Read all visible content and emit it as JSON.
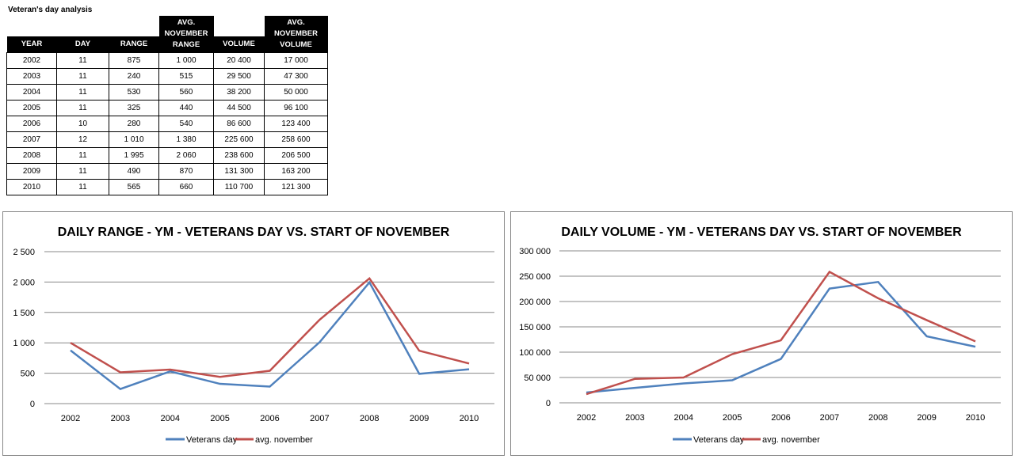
{
  "title": "Veteran's day analysis",
  "table": {
    "headers": [
      "YEAR",
      "DAY",
      "RANGE",
      "AVG. NOVEMBER RANGE",
      "VOLUME",
      "AVG. NOVEMBER VOLUME"
    ],
    "rows": [
      [
        "2002",
        "11",
        "875",
        "1 000",
        "20 400",
        "17 000"
      ],
      [
        "2003",
        "11",
        "240",
        "515",
        "29 500",
        "47 300"
      ],
      [
        "2004",
        "11",
        "530",
        "560",
        "38 200",
        "50 000"
      ],
      [
        "2005",
        "11",
        "325",
        "440",
        "44 500",
        "96 100"
      ],
      [
        "2006",
        "10",
        "280",
        "540",
        "86 600",
        "123 400"
      ],
      [
        "2007",
        "12",
        "1 010",
        "1 380",
        "225 600",
        "258 600"
      ],
      [
        "2008",
        "11",
        "1 995",
        "2 060",
        "238 600",
        "206 500"
      ],
      [
        "2009",
        "11",
        "490",
        "870",
        "131 300",
        "163 200"
      ],
      [
        "2010",
        "11",
        "565",
        "660",
        "110 700",
        "121 300"
      ]
    ]
  },
  "colors": {
    "veterans": "#4F81BD",
    "november": "#C0504D"
  },
  "chart_data": [
    {
      "type": "line",
      "title": "DAILY RANGE - YM - VETERANS DAY VS. START OF NOVEMBER",
      "categories": [
        "2002",
        "2003",
        "2004",
        "2005",
        "2006",
        "2007",
        "2008",
        "2009",
        "2010"
      ],
      "ylim": [
        0,
        2500
      ],
      "yticks": [
        0,
        500,
        1000,
        1500,
        2000,
        2500
      ],
      "ytick_labels": [
        "0",
        "500",
        "1 000",
        "1 500",
        "2 000",
        "2 500"
      ],
      "series": [
        {
          "name": "Veterans day",
          "values": [
            875,
            240,
            530,
            325,
            280,
            1010,
            1995,
            490,
            565
          ]
        },
        {
          "name": "avg. november",
          "values": [
            1000,
            515,
            560,
            440,
            540,
            1380,
            2060,
            870,
            660
          ]
        }
      ],
      "legend": "bottom",
      "grid": true
    },
    {
      "type": "line",
      "title": "DAILY VOLUME - YM - VETERANS DAY VS. START OF NOVEMBER",
      "categories": [
        "2002",
        "2003",
        "2004",
        "2005",
        "2006",
        "2007",
        "2008",
        "2009",
        "2010"
      ],
      "ylim": [
        0,
        300000
      ],
      "yticks": [
        0,
        50000,
        100000,
        150000,
        200000,
        250000,
        300000
      ],
      "ytick_labels": [
        "0",
        "50 000",
        "100 000",
        "150 000",
        "200 000",
        "250 000",
        "300 000"
      ],
      "series": [
        {
          "name": "Veterans day",
          "values": [
            20400,
            29500,
            38200,
            44500,
            86600,
            225600,
            238600,
            131300,
            110700
          ]
        },
        {
          "name": "avg. november",
          "values": [
            17000,
            47300,
            50000,
            96100,
            123400,
            258600,
            206500,
            163200,
            121300
          ]
        }
      ],
      "legend": "bottom",
      "grid": true
    }
  ]
}
